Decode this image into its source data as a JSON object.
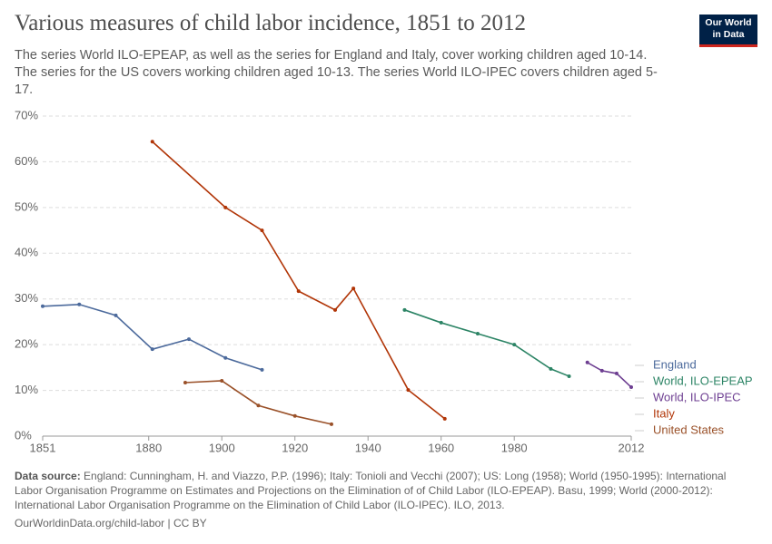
{
  "chart_data": {
    "type": "line",
    "title": "Various measures of child labor incidence, 1851 to 2012",
    "subtitle": "The series World ILO-EPEAP, as well as the series for England and Italy, cover working children aged 10-14. The series for the US covers working children aged 10-13. The series World ILO-IPEC covers children aged 5-17.",
    "logo": [
      "Our World",
      "in Data"
    ],
    "source_label": "Data source:",
    "source": "England: Cunningham, H. and Viazzo, P.P. (1996); Italy: Tonioli and Vecchi (2007); US: Long (1958); World (1950-1995): International Labor Organisation Programme on Estimates and Projections on the Elimination of of Child Labor (ILO-EPEAP). Basu, 1999; World (2000-2012): International Labor Organisation Programme on the Elimination of Child Labor (ILO-IPEC). ILO, 2013.",
    "footer": "OurWorldinData.org/child-labor | CC BY",
    "xlim": [
      1851,
      2012
    ],
    "xticks": [
      1851,
      1880,
      1900,
      1920,
      1940,
      1960,
      1980,
      2012
    ],
    "ylim": [
      0,
      70
    ],
    "yticks": [
      {
        "value": 0,
        "label": "0%"
      },
      {
        "value": 10,
        "label": "10%"
      },
      {
        "value": 20,
        "label": "20%"
      },
      {
        "value": 30,
        "label": "30%"
      },
      {
        "value": 40,
        "label": "40%"
      },
      {
        "value": 50,
        "label": "50%"
      },
      {
        "value": 60,
        "label": "60%"
      },
      {
        "value": 70,
        "label": "70%"
      }
    ],
    "grid": true,
    "series": [
      {
        "name": "England",
        "color": "#4c6a9c",
        "x": [
          1851,
          1861,
          1871,
          1881,
          1891,
          1901,
          1911
        ],
        "values": [
          28.4,
          28.8,
          26.4,
          19.0,
          21.2,
          17.1,
          14.5
        ]
      },
      {
        "name": "World, ILO-EPEAP",
        "color": "#2c8465",
        "x": [
          1950,
          1960,
          1970,
          1980,
          1990,
          1995
        ],
        "values": [
          27.6,
          24.8,
          22.4,
          20.0,
          14.7,
          13.1
        ]
      },
      {
        "name": "World, ILO-IPEC",
        "color": "#6d3e91",
        "x": [
          2000,
          2004,
          2008,
          2012
        ],
        "values": [
          16.1,
          14.3,
          13.7,
          10.7
        ]
      },
      {
        "name": "Italy",
        "color": "#b13507",
        "x": [
          1881,
          1901,
          1911,
          1921,
          1931,
          1936,
          1951,
          1961
        ],
        "values": [
          64.4,
          50.0,
          45.0,
          31.7,
          27.6,
          32.3,
          10.1,
          3.8
        ]
      },
      {
        "name": "United States",
        "color": "#9a5129",
        "x": [
          1890,
          1900,
          1910,
          1920,
          1930
        ],
        "values": [
          11.7,
          12.1,
          6.7,
          4.4,
          2.6
        ]
      }
    ]
  }
}
